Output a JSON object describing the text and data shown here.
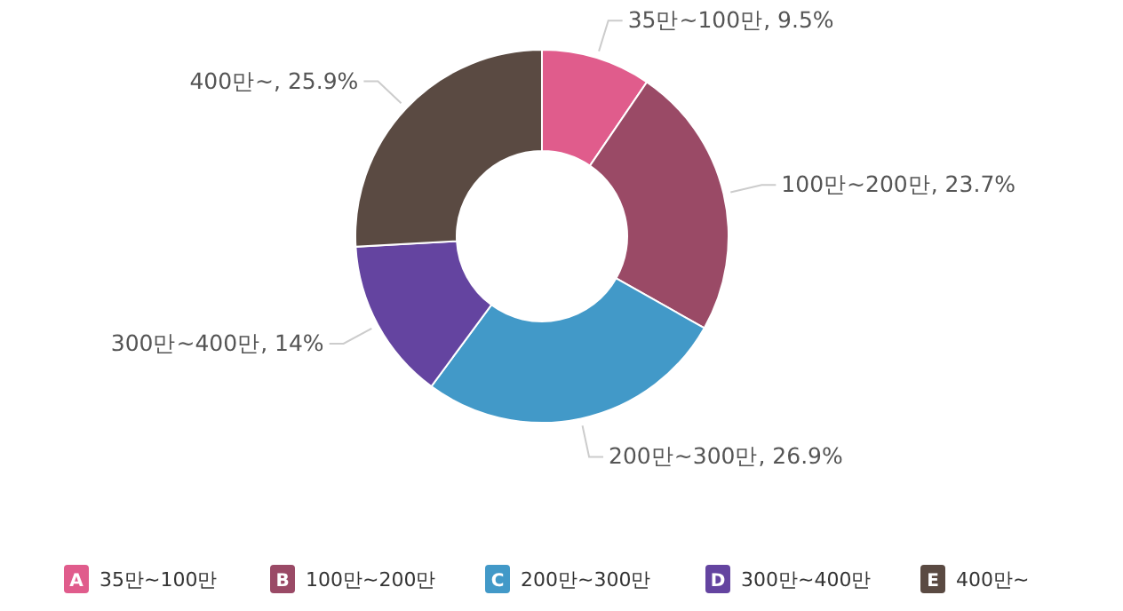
{
  "chart_data": {
    "type": "donut",
    "categories": [
      "35만~100만",
      "100만~200만",
      "200만~300만",
      "300만~400만",
      "400만~"
    ],
    "values": [
      9.5,
      23.7,
      26.9,
      14,
      25.9
    ],
    "value_labels": [
      "35만~100만, 9.5%",
      "100만~200만, 23.7%",
      "200만~300만, 26.9%",
      "300만~400만, 14%",
      "400만~, 25.9%"
    ],
    "annotations": [
      "A",
      "B",
      "C",
      "D",
      "E"
    ],
    "colors": [
      "#e05c8c",
      "#9a4a66",
      "#4299c8",
      "#6444a0",
      "#5a4a42"
    ],
    "legend": "bottom"
  }
}
